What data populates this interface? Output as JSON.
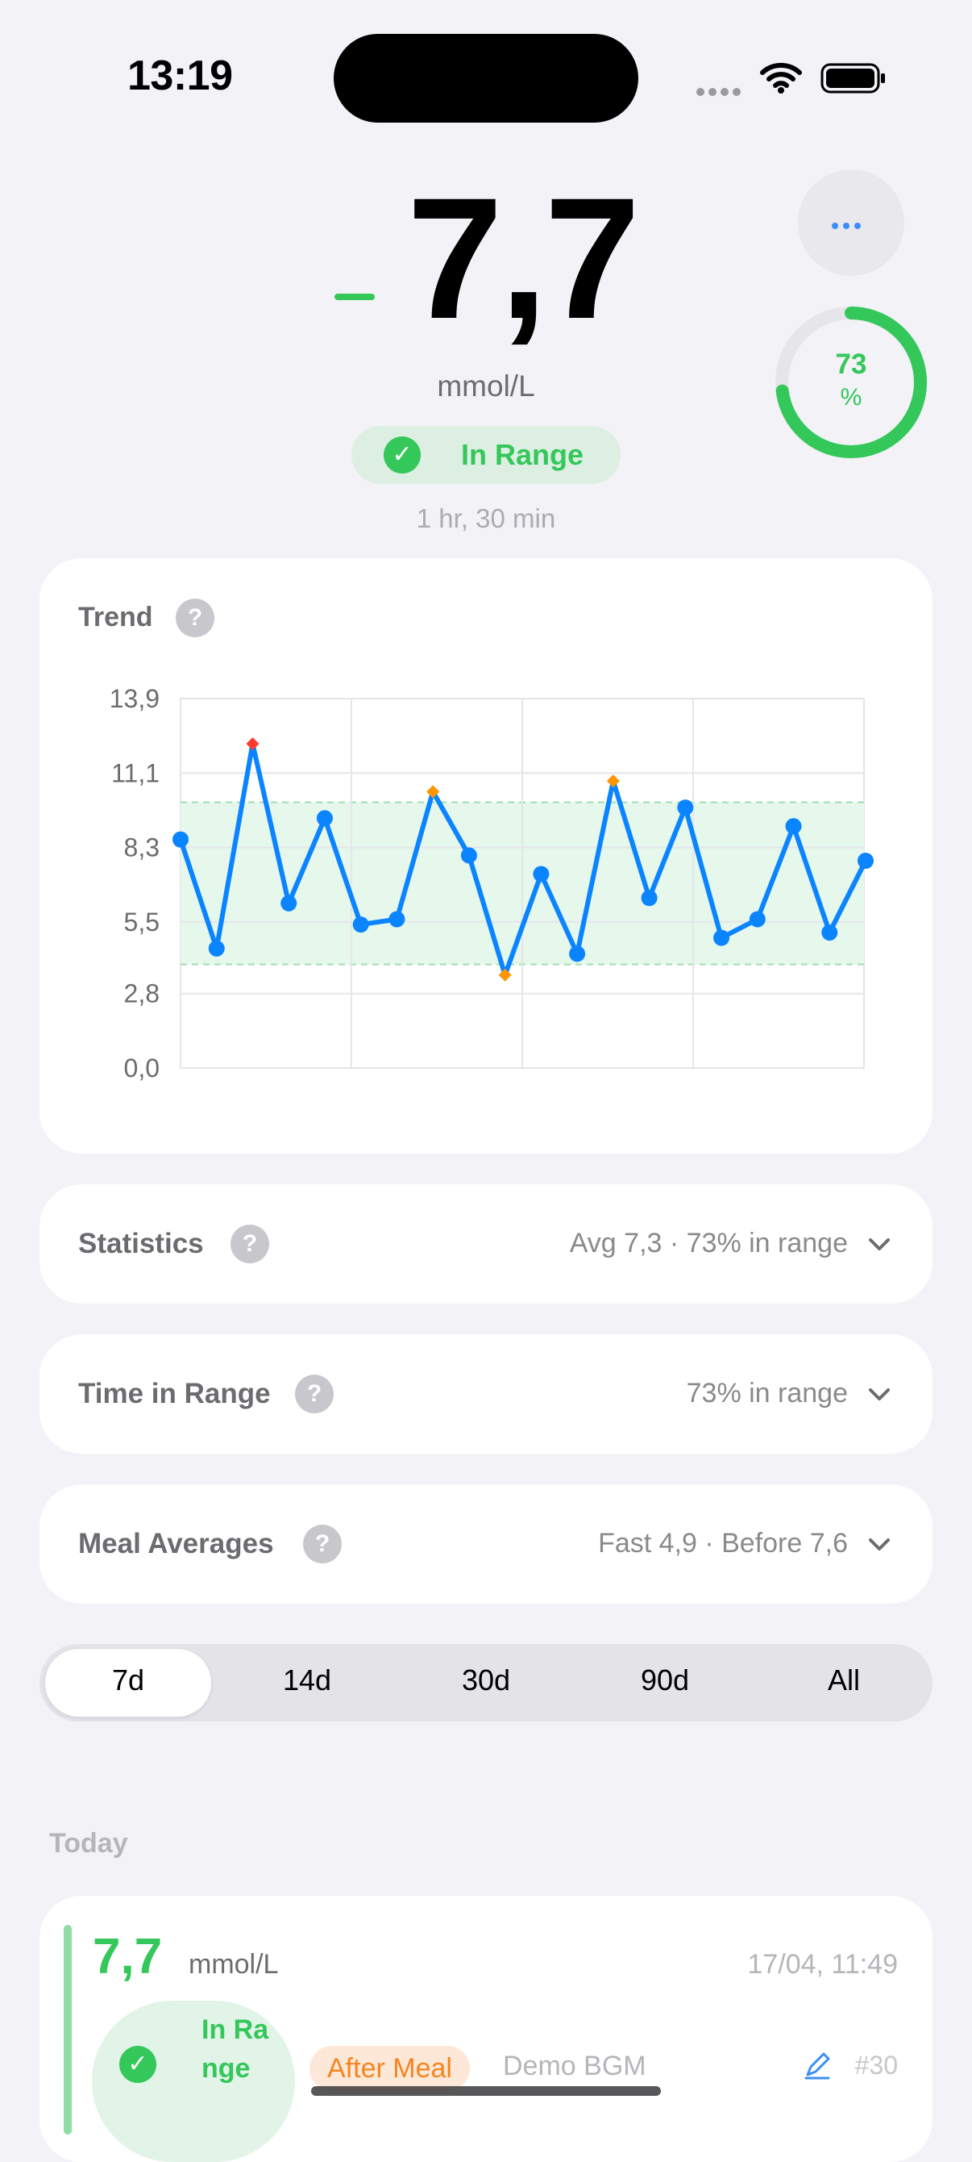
{
  "status_bar": {
    "time": "13:19"
  },
  "current_reading": {
    "trend_icon": "steady-dash-icon",
    "value": "7,7",
    "unit": "mmol/L",
    "status": "In Range",
    "elapsed": "1 hr, 30 min"
  },
  "time_in_range_ring": {
    "value": "73",
    "unit": "%",
    "fraction": 0.73
  },
  "colors": {
    "in_range": "#34C759",
    "line": "#0A84FF",
    "high": "#FF3B30",
    "warn": "#FF9500",
    "range_band": "#E6F7EC"
  },
  "trend": {
    "title": "Trend",
    "help_icon": "?"
  },
  "chart_data": {
    "type": "line",
    "title": "Trend",
    "ylim": [
      0.0,
      13.9
    ],
    "y_ticks": [
      "13,9",
      "11,1",
      "8,3",
      "5,5",
      "2,8",
      "0,0"
    ],
    "y_tick_values": [
      13.9,
      11.1,
      8.3,
      5.5,
      2.8,
      0.0
    ],
    "target_range": [
      3.9,
      10.0
    ],
    "grid": true,
    "series": [
      {
        "values": [
          8.6,
          4.5,
          12.2,
          6.2,
          9.4,
          5.4,
          5.6,
          10.4,
          8.0,
          3.5,
          7.3,
          4.3,
          10.8,
          6.4,
          9.8,
          4.9,
          5.6,
          9.1,
          5.1,
          7.8
        ],
        "point_kinds": [
          "normal",
          "normal",
          "high",
          "normal",
          "normal",
          "normal",
          "normal",
          "warn",
          "normal",
          "warn",
          "normal",
          "normal",
          "warn",
          "normal",
          "normal",
          "normal",
          "normal",
          "normal",
          "normal",
          "normal"
        ]
      }
    ]
  },
  "sections": [
    {
      "title": "Statistics",
      "summary": "Avg 7,3 · 73% in range"
    },
    {
      "title": "Time in Range",
      "summary": "73% in range"
    },
    {
      "title": "Meal Averages",
      "summary": "Fast 4,9 · Before 7,6"
    }
  ],
  "periods": [
    "7d",
    "14d",
    "30d",
    "90d",
    "All"
  ],
  "selected_period": "7d",
  "history": {
    "today_label": "Today",
    "entries": [
      {
        "value": "7,7",
        "unit": "mmol/L",
        "timestamp": "17/04, 11:49",
        "status": "In Range",
        "meal": "After Meal",
        "device": "Demo BGM",
        "number": "#30"
      }
    ]
  }
}
